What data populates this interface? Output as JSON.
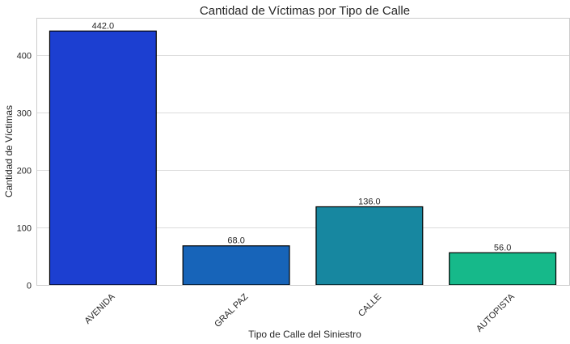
{
  "chart_data": {
    "type": "bar",
    "title": "Cantidad de Víctimas por Tipo de Calle",
    "xlabel": "Tipo de Calle del Siniestro",
    "ylabel": "Cantidad de Víctimas",
    "categories": [
      "AVENIDA",
      "GRAL PAZ",
      "CALLE",
      "AUTOPISTA"
    ],
    "values": [
      442,
      68,
      136,
      56
    ],
    "value_labels": [
      "442.0",
      "68.0",
      "136.0",
      "56.0"
    ],
    "colors": [
      "#1c3fd1",
      "#1764b9",
      "#1787a0",
      "#16b98a"
    ],
    "ylim": [
      0,
      465
    ],
    "yticks": [
      0,
      100,
      200,
      300,
      400
    ],
    "grid": true,
    "x_tick_rotation": "45"
  }
}
